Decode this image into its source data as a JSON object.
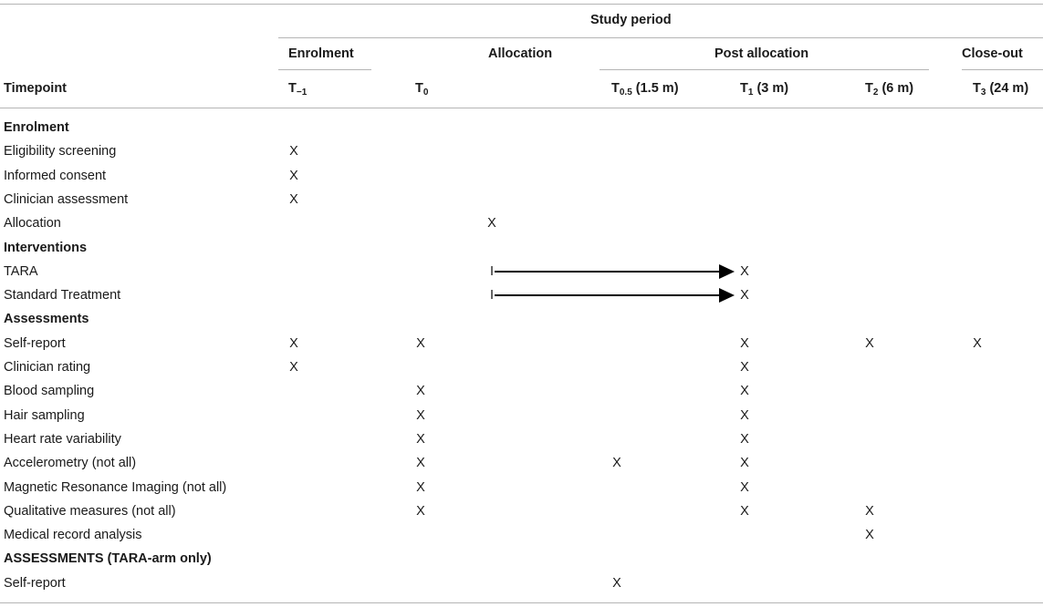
{
  "header": {
    "study_period": "Study period",
    "groups": {
      "enrolment": "Enrolment",
      "allocation": "Allocation",
      "post_allocation": "Post allocation",
      "close_out": "Close-out"
    },
    "timepoint_label": "Timepoint",
    "timepoints": [
      {
        "main": "T",
        "sub": "−1",
        "suffix": ""
      },
      {
        "main": "T",
        "sub": "0",
        "suffix": ""
      },
      {
        "main": "T",
        "sub": "0.5",
        "suffix": " (1.5 m)"
      },
      {
        "main": "T",
        "sub": "1",
        "suffix": " (3 m)"
      },
      {
        "main": "T",
        "sub": "2",
        "suffix": " (6 m)"
      },
      {
        "main": "T",
        "sub": "3",
        "suffix": " (24 m)"
      }
    ]
  },
  "rows": [
    {
      "label": "Enrolment",
      "section": true,
      "marks": {}
    },
    {
      "label": "Eligibility screening",
      "marks": {
        "tm1": "X"
      }
    },
    {
      "label": "Informed consent",
      "marks": {
        "tm1": "X"
      }
    },
    {
      "label": "Clinician assessment",
      "marks": {
        "tm1": "X"
      }
    },
    {
      "label": "Allocation",
      "marks": {
        "alloc": "X"
      }
    },
    {
      "label": "Interventions",
      "section": true,
      "marks": {}
    },
    {
      "label": "TARA",
      "marks": {
        "alloc": "I",
        "t1": "X"
      },
      "arrow": true
    },
    {
      "label": "Standard Treatment",
      "marks": {
        "alloc": "I",
        "t1": "X"
      },
      "arrow": true
    },
    {
      "label": "Assessments",
      "section": true,
      "marks": {}
    },
    {
      "label": "Self-report",
      "marks": {
        "tm1": "X",
        "t0": "X",
        "t1": "X",
        "t2": "X",
        "t3": "X"
      }
    },
    {
      "label": "Clinician rating",
      "marks": {
        "tm1": "X",
        "t1": "X"
      }
    },
    {
      "label": "Blood sampling",
      "marks": {
        "t0": "X",
        "t1": "X"
      }
    },
    {
      "label": "Hair sampling",
      "marks": {
        "t0": "X",
        "t1": "X"
      }
    },
    {
      "label": "Heart rate variability",
      "marks": {
        "t0": "X",
        "t1": "X"
      }
    },
    {
      "label": "Accelerometry (not all)",
      "marks": {
        "t0": "X",
        "t05": "X",
        "t1": "X"
      }
    },
    {
      "label": "Magnetic Resonance Imaging (not all)",
      "marks": {
        "t0": "X",
        "t1": "X"
      }
    },
    {
      "label": "Qualitative measures (not all)",
      "marks": {
        "t0": "X",
        "t1": "X",
        "t2": "X"
      }
    },
    {
      "label": "Medical record analysis",
      "marks": {
        "t2": "X"
      }
    },
    {
      "label": "ASSESSMENTS (TARA-arm only)",
      "section": true,
      "marks": {}
    },
    {
      "label": "Self-report",
      "marks": {
        "t05": "X"
      }
    }
  ]
}
